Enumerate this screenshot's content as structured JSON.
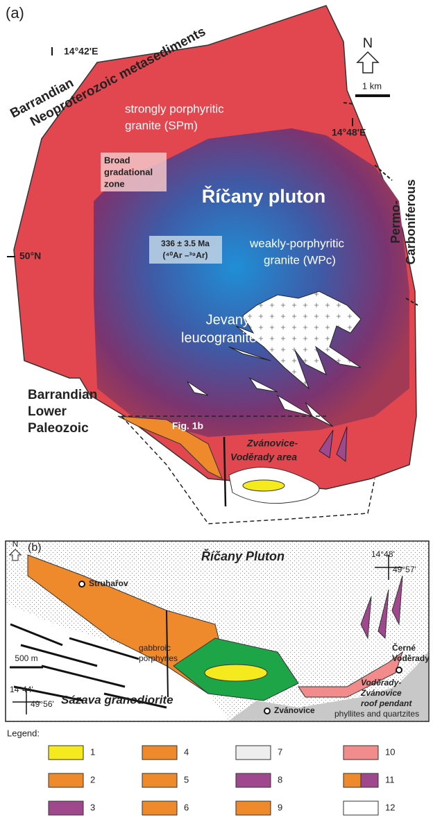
{
  "panel_a": {
    "label": "(a)",
    "north": "N",
    "scale": "1 km",
    "lon_west": "14°42'E",
    "lon_east": "14°48'E",
    "lat": "50°N",
    "barrandian_neoproterozoic": [
      "Barrandian",
      "Neoproterozoic metasediments"
    ],
    "spm": [
      "strongly porphyritic",
      "granite (SPm)"
    ],
    "gradational_zone": [
      "Broad",
      "gradational",
      "zone"
    ],
    "pluton": "Říčany pluton",
    "permo_carboniferous": [
      "Permo-",
      "Carboniferous"
    ],
    "age": [
      "336 ± 3.5 Ma",
      "(⁴⁰Ar –³⁹Ar)"
    ],
    "wpc": [
      "weakly-porphyritic",
      "granite (WPc)"
    ],
    "jevany": [
      "Jevany",
      "leucogranite"
    ],
    "barrandian_paleozoic": [
      "Barrandian",
      "Lower",
      "Paleozoic"
    ],
    "fig_ref": "Fig. 1b",
    "area": [
      "Zvánovice-",
      "Voděrady area"
    ]
  },
  "panel_b": {
    "label": "(b)",
    "north": "N",
    "pluton": "Říčany Pluton",
    "struharov": "Struhařov",
    "lon_east": "14°48'",
    "lat_east": "49°57'",
    "gabbroic": [
      "gabbroic",
      "porphyries"
    ],
    "scale": "500 m",
    "cerne": [
      "Černé",
      "Voděrady"
    ],
    "lon_west": "14°44'",
    "lat_west": "49°56'",
    "sazava": "Sázava granodiorite",
    "zvanovice": "Zvánovice",
    "pendant": [
      "Voděrady-",
      "Zvánovice",
      "roof pendant"
    ],
    "phyllites": "phyllites and quartzites"
  },
  "legend": {
    "title": "Legend:",
    "items": [
      "1",
      "2",
      "3",
      "4",
      "5",
      "6",
      "7",
      "8",
      "9",
      "10",
      "11",
      "12"
    ]
  }
}
